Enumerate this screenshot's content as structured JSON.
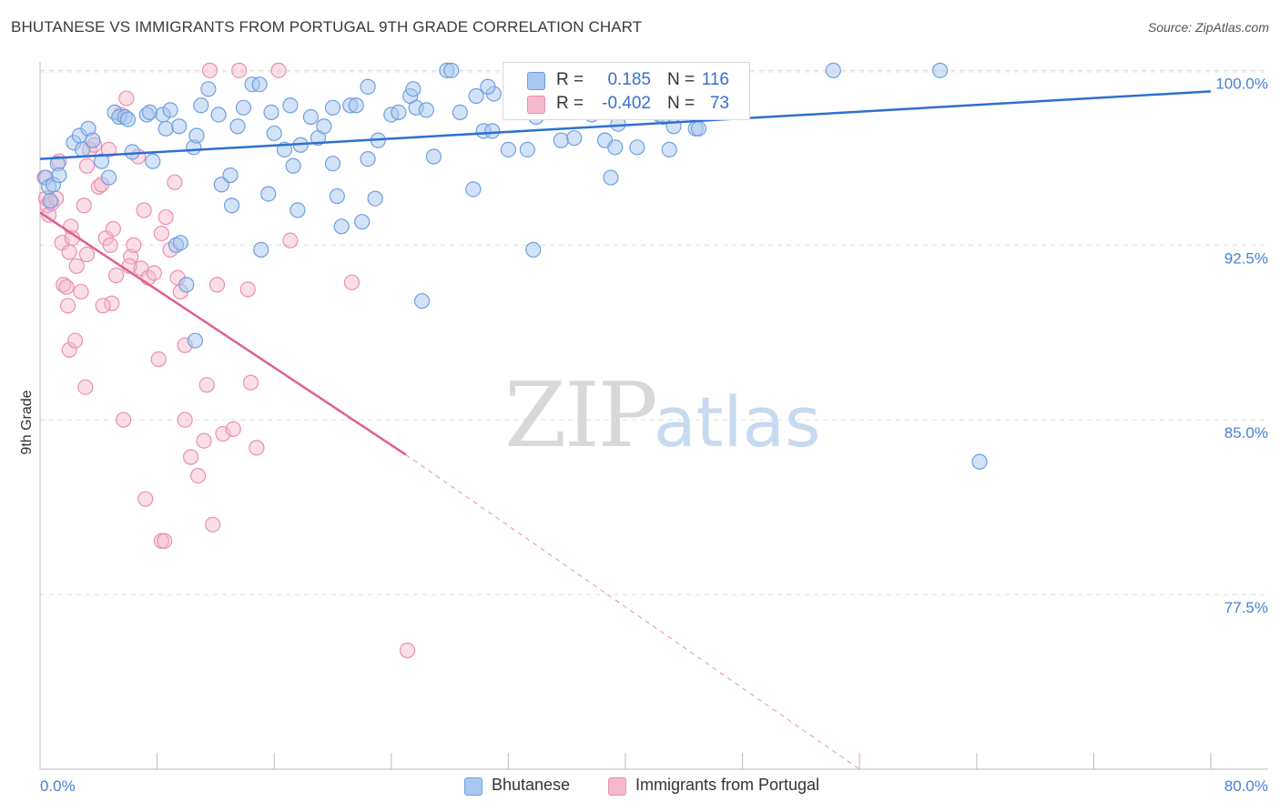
{
  "header": {
    "title": "BHUTANESE VS IMMIGRANTS FROM PORTUGAL 9TH GRADE CORRELATION CHART",
    "source": "Source: ZipAtlas.com"
  },
  "watermark": {
    "zip": "ZIP",
    "atlas": "atlas"
  },
  "legend": {
    "rows": [
      {
        "r_label": "R =",
        "r_value": "0.185",
        "n_label": "N =",
        "n_value": "116"
      },
      {
        "r_label": "R =",
        "r_value": "-0.402",
        "n_label": "N =",
        "n_value": "73"
      }
    ]
  },
  "bottom_legend": {
    "series1": "Bhutanese",
    "series2": "Immigrants from Portugal"
  },
  "chart_data": {
    "type": "scatter",
    "title": "BHUTANESE VS IMMIGRANTS FROM PORTUGAL 9TH GRADE CORRELATION CHART",
    "xlabel": "",
    "ylabel": "9th Grade",
    "xlim": [
      0,
      80
    ],
    "ylim": [
      70.0,
      100.6
    ],
    "x_tick_labels": [
      "0.0%",
      "80.0%"
    ],
    "y_ticks": [
      77.5,
      85.0,
      92.5,
      100.0
    ],
    "y_tick_labels": [
      "77.5%",
      "85.0%",
      "92.5%",
      "100.0%"
    ],
    "grid": true,
    "legend_position": "top-center",
    "colors": {
      "blue_fill": "#a8c8f0",
      "blue_stroke": "#6f9fe0",
      "blue_line": "#2f6fd0",
      "pink_fill": "#f5b8cc",
      "pink_stroke": "#ec8fb0",
      "pink_line": "#e0608f",
      "tick_text": "#4a7fd4"
    },
    "series": [
      {
        "name": "Bhutanese",
        "color": "#6f9fe0",
        "trend": {
          "x0": 0,
          "y0": 96.2,
          "x1": 80,
          "y1": 99.1
        },
        "points": [
          [
            0.4,
            95.4
          ],
          [
            0.6,
            95.0
          ],
          [
            0.7,
            94.4
          ],
          [
            0.9,
            95.1
          ],
          [
            1.2,
            96.0
          ],
          [
            1.3,
            95.5
          ],
          [
            2.3,
            96.9
          ],
          [
            2.7,
            97.2
          ],
          [
            2.9,
            96.6
          ],
          [
            3.3,
            97.5
          ],
          [
            3.6,
            97.0
          ],
          [
            4.2,
            96.1
          ],
          [
            4.7,
            95.4
          ],
          [
            5.1,
            98.2
          ],
          [
            5.4,
            98.0
          ],
          [
            5.8,
            98.0
          ],
          [
            6.0,
            97.9
          ],
          [
            6.3,
            96.5
          ],
          [
            7.3,
            98.1
          ],
          [
            7.5,
            98.2
          ],
          [
            7.7,
            96.1
          ],
          [
            8.4,
            98.1
          ],
          [
            8.6,
            97.5
          ],
          [
            8.9,
            98.3
          ],
          [
            9.3,
            92.5
          ],
          [
            9.5,
            97.6
          ],
          [
            9.6,
            92.6
          ],
          [
            10.0,
            90.8
          ],
          [
            10.6,
            88.4
          ],
          [
            10.5,
            96.7
          ],
          [
            10.7,
            97.2
          ],
          [
            11.0,
            98.5
          ],
          [
            11.5,
            99.2
          ],
          [
            12.4,
            95.1
          ],
          [
            12.2,
            98.1
          ],
          [
            13.0,
            95.5
          ],
          [
            13.1,
            94.2
          ],
          [
            13.5,
            97.6
          ],
          [
            13.9,
            98.4
          ],
          [
            14.5,
            99.4
          ],
          [
            15.0,
            99.4
          ],
          [
            15.1,
            92.3
          ],
          [
            15.6,
            94.7
          ],
          [
            15.8,
            98.2
          ],
          [
            16.0,
            97.3
          ],
          [
            16.7,
            96.6
          ],
          [
            17.1,
            98.5
          ],
          [
            17.3,
            95.9
          ],
          [
            17.6,
            94.0
          ],
          [
            17.8,
            96.8
          ],
          [
            18.5,
            98.0
          ],
          [
            19.0,
            97.1
          ],
          [
            19.4,
            97.6
          ],
          [
            20.0,
            98.4
          ],
          [
            20.0,
            96.0
          ],
          [
            20.3,
            94.6
          ],
          [
            20.6,
            93.3
          ],
          [
            21.2,
            98.5
          ],
          [
            21.6,
            98.5
          ],
          [
            22.0,
            93.5
          ],
          [
            22.4,
            96.2
          ],
          [
            22.9,
            94.5
          ],
          [
            22.4,
            99.3
          ],
          [
            23.1,
            97.0
          ],
          [
            24.0,
            98.1
          ],
          [
            24.5,
            98.2
          ],
          [
            25.3,
            98.9
          ],
          [
            25.5,
            99.2
          ],
          [
            25.7,
            98.4
          ],
          [
            26.1,
            90.1
          ],
          [
            26.4,
            98.3
          ],
          [
            26.9,
            96.3
          ],
          [
            27.8,
            100.0
          ],
          [
            28.1,
            100.0
          ],
          [
            28.7,
            98.2
          ],
          [
            29.6,
            94.9
          ],
          [
            29.8,
            98.9
          ],
          [
            30.3,
            97.4
          ],
          [
            30.9,
            97.4
          ],
          [
            32.0,
            96.6
          ],
          [
            32.8,
            99.8
          ],
          [
            33.3,
            96.6
          ],
          [
            33.7,
            92.3
          ],
          [
            34.2,
            98.3
          ],
          [
            35.3,
            100.0
          ],
          [
            35.6,
            97.0
          ],
          [
            35.8,
            99.2
          ],
          [
            36.5,
            97.1
          ],
          [
            37.7,
            98.1
          ],
          [
            38.1,
            99.5
          ],
          [
            38.6,
            97.0
          ],
          [
            39.0,
            95.4
          ],
          [
            39.5,
            97.7
          ],
          [
            40.5,
            98.5
          ],
          [
            40.8,
            96.7
          ],
          [
            41.6,
            98.6
          ],
          [
            42.3,
            98.1
          ],
          [
            43.0,
            96.6
          ],
          [
            42.1,
            99.6
          ],
          [
            44.6,
            100.0
          ],
          [
            44.8,
            97.5
          ],
          [
            45.0,
            97.5
          ],
          [
            45.5,
            98.2
          ],
          [
            43.3,
            97.6
          ],
          [
            39.3,
            96.7
          ],
          [
            37.9,
            98.8
          ],
          [
            33.9,
            98.0
          ],
          [
            31.0,
            99.0
          ],
          [
            34.8,
            98.3
          ],
          [
            41.8,
            99.6
          ],
          [
            46.5,
            99.7
          ],
          [
            47.8,
            99.5
          ],
          [
            54.2,
            100.0
          ],
          [
            46.1,
            99.7
          ],
          [
            42.6,
            98.0
          ],
          [
            61.5,
            100.0
          ],
          [
            64.2,
            83.2
          ],
          [
            36.0,
            99.3
          ],
          [
            30.6,
            99.3
          ],
          [
            40.0,
            99.5
          ],
          [
            41.0,
            98.6
          ],
          [
            44.0,
            99.2
          ],
          [
            45.8,
            99.6
          ],
          [
            47.0,
            100.0
          ],
          [
            36.9,
            98.2
          ],
          [
            33.0,
            98.8
          ]
        ]
      },
      {
        "name": "Immigrants from Portugal",
        "color": "#ec8fb0",
        "trend": {
          "x0": 0,
          "y0": 93.9,
          "x1": 25,
          "y1": 83.5,
          "dash_x1": 56,
          "dash_y1": 70.0
        },
        "points": [
          [
            0.3,
            95.4
          ],
          [
            0.4,
            94.5
          ],
          [
            0.5,
            94.2
          ],
          [
            0.6,
            93.8
          ],
          [
            0.8,
            94.3
          ],
          [
            1.1,
            94.5
          ],
          [
            1.3,
            96.1
          ],
          [
            1.5,
            92.6
          ],
          [
            1.6,
            90.8
          ],
          [
            1.8,
            90.7
          ],
          [
            2.0,
            92.2
          ],
          [
            2.1,
            93.3
          ],
          [
            2.2,
            92.8
          ],
          [
            2.5,
            91.6
          ],
          [
            2.8,
            90.5
          ],
          [
            3.0,
            94.2
          ],
          [
            3.2,
            95.9
          ],
          [
            3.4,
            96.6
          ],
          [
            3.7,
            96.8
          ],
          [
            4.0,
            95.0
          ],
          [
            4.2,
            95.1
          ],
          [
            4.5,
            92.8
          ],
          [
            4.7,
            96.6
          ],
          [
            4.8,
            92.5
          ],
          [
            5.0,
            93.2
          ],
          [
            5.2,
            91.2
          ],
          [
            5.5,
            98.1
          ],
          [
            5.9,
            98.8
          ],
          [
            6.2,
            92.0
          ],
          [
            6.4,
            92.5
          ],
          [
            6.7,
            96.3
          ],
          [
            6.9,
            91.5
          ],
          [
            7.1,
            94.0
          ],
          [
            7.4,
            91.1
          ],
          [
            7.8,
            91.3
          ],
          [
            8.1,
            87.6
          ],
          [
            8.3,
            93.0
          ],
          [
            8.6,
            93.7
          ],
          [
            8.9,
            92.3
          ],
          [
            9.2,
            95.2
          ],
          [
            9.4,
            91.1
          ],
          [
            9.6,
            90.5
          ],
          [
            9.9,
            85.0
          ],
          [
            10.3,
            83.4
          ],
          [
            10.8,
            82.6
          ],
          [
            11.2,
            84.1
          ],
          [
            11.6,
            100.0
          ],
          [
            12.1,
            90.8
          ],
          [
            12.5,
            84.4
          ],
          [
            13.2,
            84.6
          ],
          [
            13.6,
            100.0
          ],
          [
            14.2,
            90.6
          ],
          [
            14.4,
            86.6
          ],
          [
            14.8,
            83.8
          ],
          [
            2.0,
            88.0
          ],
          [
            2.4,
            88.4
          ],
          [
            3.1,
            86.4
          ],
          [
            4.9,
            90.0
          ],
          [
            5.7,
            85.0
          ],
          [
            7.2,
            81.6
          ],
          [
            8.3,
            79.8
          ],
          [
            8.5,
            79.8
          ],
          [
            11.8,
            80.5
          ],
          [
            11.4,
            86.5
          ],
          [
            16.3,
            100.0
          ],
          [
            17.1,
            92.7
          ],
          [
            21.3,
            90.9
          ],
          [
            25.1,
            75.1
          ],
          [
            9.9,
            88.2
          ],
          [
            3.2,
            92.1
          ],
          [
            1.9,
            89.9
          ],
          [
            4.3,
            89.9
          ],
          [
            6.1,
            91.6
          ]
        ]
      }
    ]
  }
}
